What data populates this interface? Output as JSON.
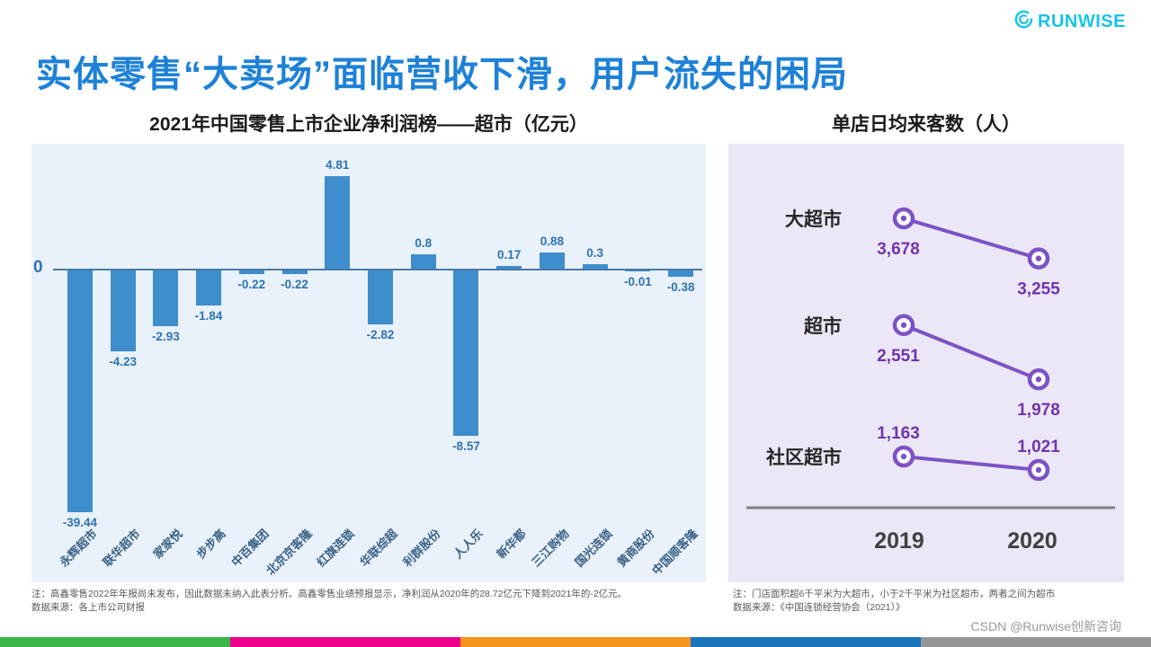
{
  "logo": {
    "text": "RUNWISE"
  },
  "title": "实体零售“大卖场”面临营收下滑，用户流失的困局",
  "left_chart": {
    "title": "2021年中国零售上市企业净利润榜——超市（亿元）",
    "zero_label": "0",
    "note_line1": "注：高鑫零售2022年年报尚未发布，因此数据未纳入此表分析。高鑫零售业绩预报显示，净利润从2020年的28.72亿元下降到2021年的-2亿元。",
    "note_line2": "数据来源：各上市公司财报"
  },
  "right_chart": {
    "title": "单店日均来客数（人）",
    "note_line1": "注：门店面积超6千平米为大超市，小于2千平米为社区超市，两者之间为超市",
    "note_line2": "数据来源：《中国连锁经营协会（2021）》"
  },
  "chart_data": [
    {
      "type": "bar",
      "title": "2021年中国零售上市企业净利润榜——超市（亿元）",
      "categories": [
        "永辉超市",
        "联华超市",
        "家家悦",
        "步步高",
        "中百集团",
        "北京京客隆",
        "红旗连锁",
        "华联综超",
        "利群股份",
        "人人乐",
        "新华都",
        "三江购物",
        "国光连锁",
        "黄商股份",
        "中国顺客隆"
      ],
      "values": [
        -39.44,
        -4.23,
        -2.93,
        -1.84,
        -0.22,
        -0.22,
        4.81,
        -2.82,
        0.8,
        -8.57,
        0.17,
        0.88,
        0.3,
        -0.01,
        -0.38
      ],
      "value_labels": [
        "-39.44",
        "-4.23",
        "-2.93",
        "-1.84",
        "-0.22",
        "-0.22",
        "4.81",
        "-2.82",
        "0.8",
        "-8.57",
        "0.17",
        "0.88",
        "0.3",
        "-0.01",
        "-0.38"
      ],
      "baseline": 0,
      "bar_color": "#3e8ecd",
      "legend": "none",
      "grid": "off"
    },
    {
      "type": "line",
      "title": "单店日均来客数（人）",
      "x": [
        "2019",
        "2020"
      ],
      "series": [
        {
          "name": "大超市",
          "values": [
            3678,
            3255
          ],
          "value_labels": [
            "3,678",
            "3,255"
          ]
        },
        {
          "name": "超市",
          "values": [
            2551,
            1978
          ],
          "value_labels": [
            "2,551",
            "1,978"
          ]
        },
        {
          "name": "社区超市",
          "values": [
            1163,
            1021
          ],
          "value_labels": [
            "1,163",
            "1,021"
          ]
        }
      ],
      "line_color": "#7c52c5",
      "legend": "labels-left",
      "grid": "off"
    }
  ],
  "watermark": "CSDN @Runwise创新咨询",
  "footer_colors": [
    "#3bb54a",
    "#ec008c",
    "#f7941e",
    "#1b75bc",
    "#939598"
  ]
}
